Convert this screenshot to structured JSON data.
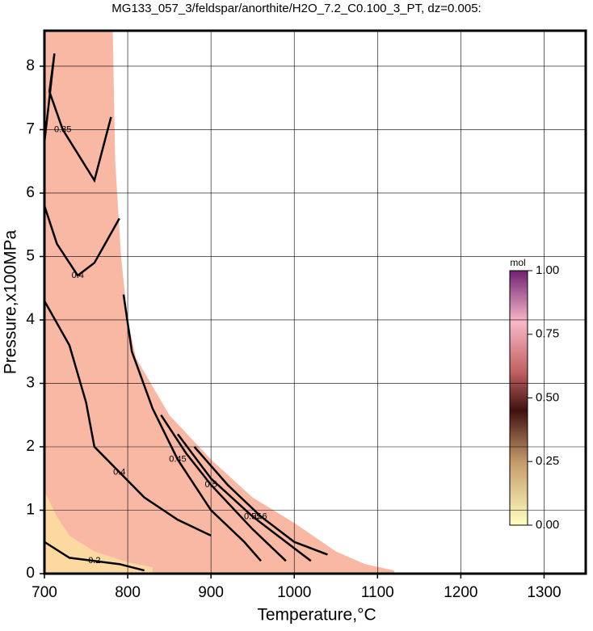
{
  "chart_data": {
    "type": "contour",
    "title": "MG133_057_3/feldspar/anorthite/H2O_7.2_C0.100_3_PT, dz=0.005:",
    "x_label": "Temperature,°C",
    "y_label": "Pressure,x100MPa",
    "xlim": [
      700,
      1350
    ],
    "ylim": [
      0,
      8.56
    ],
    "xticks": [
      700,
      800,
      900,
      1000,
      1100,
      1200,
      1300
    ],
    "yticks": [
      0,
      1,
      2,
      3,
      4,
      5,
      6,
      7,
      8
    ],
    "grid": true,
    "field": {
      "color": "#f8b8a4",
      "x": [
        700,
        782,
        785,
        792,
        800,
        810,
        850,
        900,
        950,
        1000,
        1050,
        1085,
        1120,
        1120,
        700
      ],
      "y": [
        8.56,
        8.56,
        6.5,
        5.0,
        4.0,
        3.4,
        2.5,
        1.8,
        1.2,
        0.8,
        0.35,
        0.15,
        0.05,
        0,
        0
      ]
    },
    "low_field": {
      "color": "#fbd9a0",
      "x": [
        700,
        700,
        715,
        730,
        760,
        800,
        830,
        830
      ],
      "y": [
        0,
        1.3,
        0.9,
        0.6,
        0.35,
        0.18,
        0.1,
        0
      ]
    },
    "contours": [
      {
        "level": 0.2,
        "x": [
          700,
          730,
          760,
          790,
          820
        ],
        "y": [
          0.5,
          0.25,
          0.2,
          0.15,
          0.05
        ]
      },
      {
        "level": 0.35,
        "x": [
          700,
          712,
          706,
          722,
          760,
          780
        ],
        "y": [
          6.8,
          8.2,
          7.6,
          7.0,
          6.2,
          7.2
        ]
      },
      {
        "level": 0.4,
        "x": [
          700,
          715,
          740,
          760,
          790
        ],
        "y": [
          5.8,
          5.2,
          4.7,
          4.9,
          5.6
        ]
      },
      {
        "level": 0.4,
        "x": [
          700,
          730,
          750,
          760,
          790,
          820,
          860,
          900
        ],
        "y": [
          4.3,
          3.6,
          2.7,
          2.0,
          1.6,
          1.2,
          0.85,
          0.6
        ]
      },
      {
        "level": 0.45,
        "x": [
          795,
          805,
          830,
          860,
          900,
          940,
          960
        ],
        "y": [
          4.4,
          3.5,
          2.6,
          1.8,
          1.0,
          0.5,
          0.2
        ]
      },
      {
        "level": 0.5,
        "x": [
          840,
          870,
          900,
          950,
          990
        ],
        "y": [
          2.5,
          1.9,
          1.4,
          0.7,
          0.2
        ]
      },
      {
        "level": 0.55,
        "x": [
          860,
          900,
          950,
          990,
          1020
        ],
        "y": [
          2.2,
          1.5,
          0.9,
          0.5,
          0.2
        ]
      },
      {
        "level": 0.6,
        "x": [
          880,
          920,
          960,
          1000,
          1040
        ],
        "y": [
          2.0,
          1.4,
          0.9,
          0.5,
          0.3
        ]
      }
    ],
    "colorbar": {
      "label": "mol",
      "clim": [
        0,
        1
      ],
      "ticks": [
        {
          "value": 0,
          "label": "0.00"
        },
        {
          "value": 0.25,
          "label": "0.25"
        },
        {
          "value": 0.5,
          "label": "0.50"
        },
        {
          "value": 0.75,
          "label": "0.75"
        },
        {
          "value": 1,
          "label": "1.00"
        }
      ]
    }
  }
}
